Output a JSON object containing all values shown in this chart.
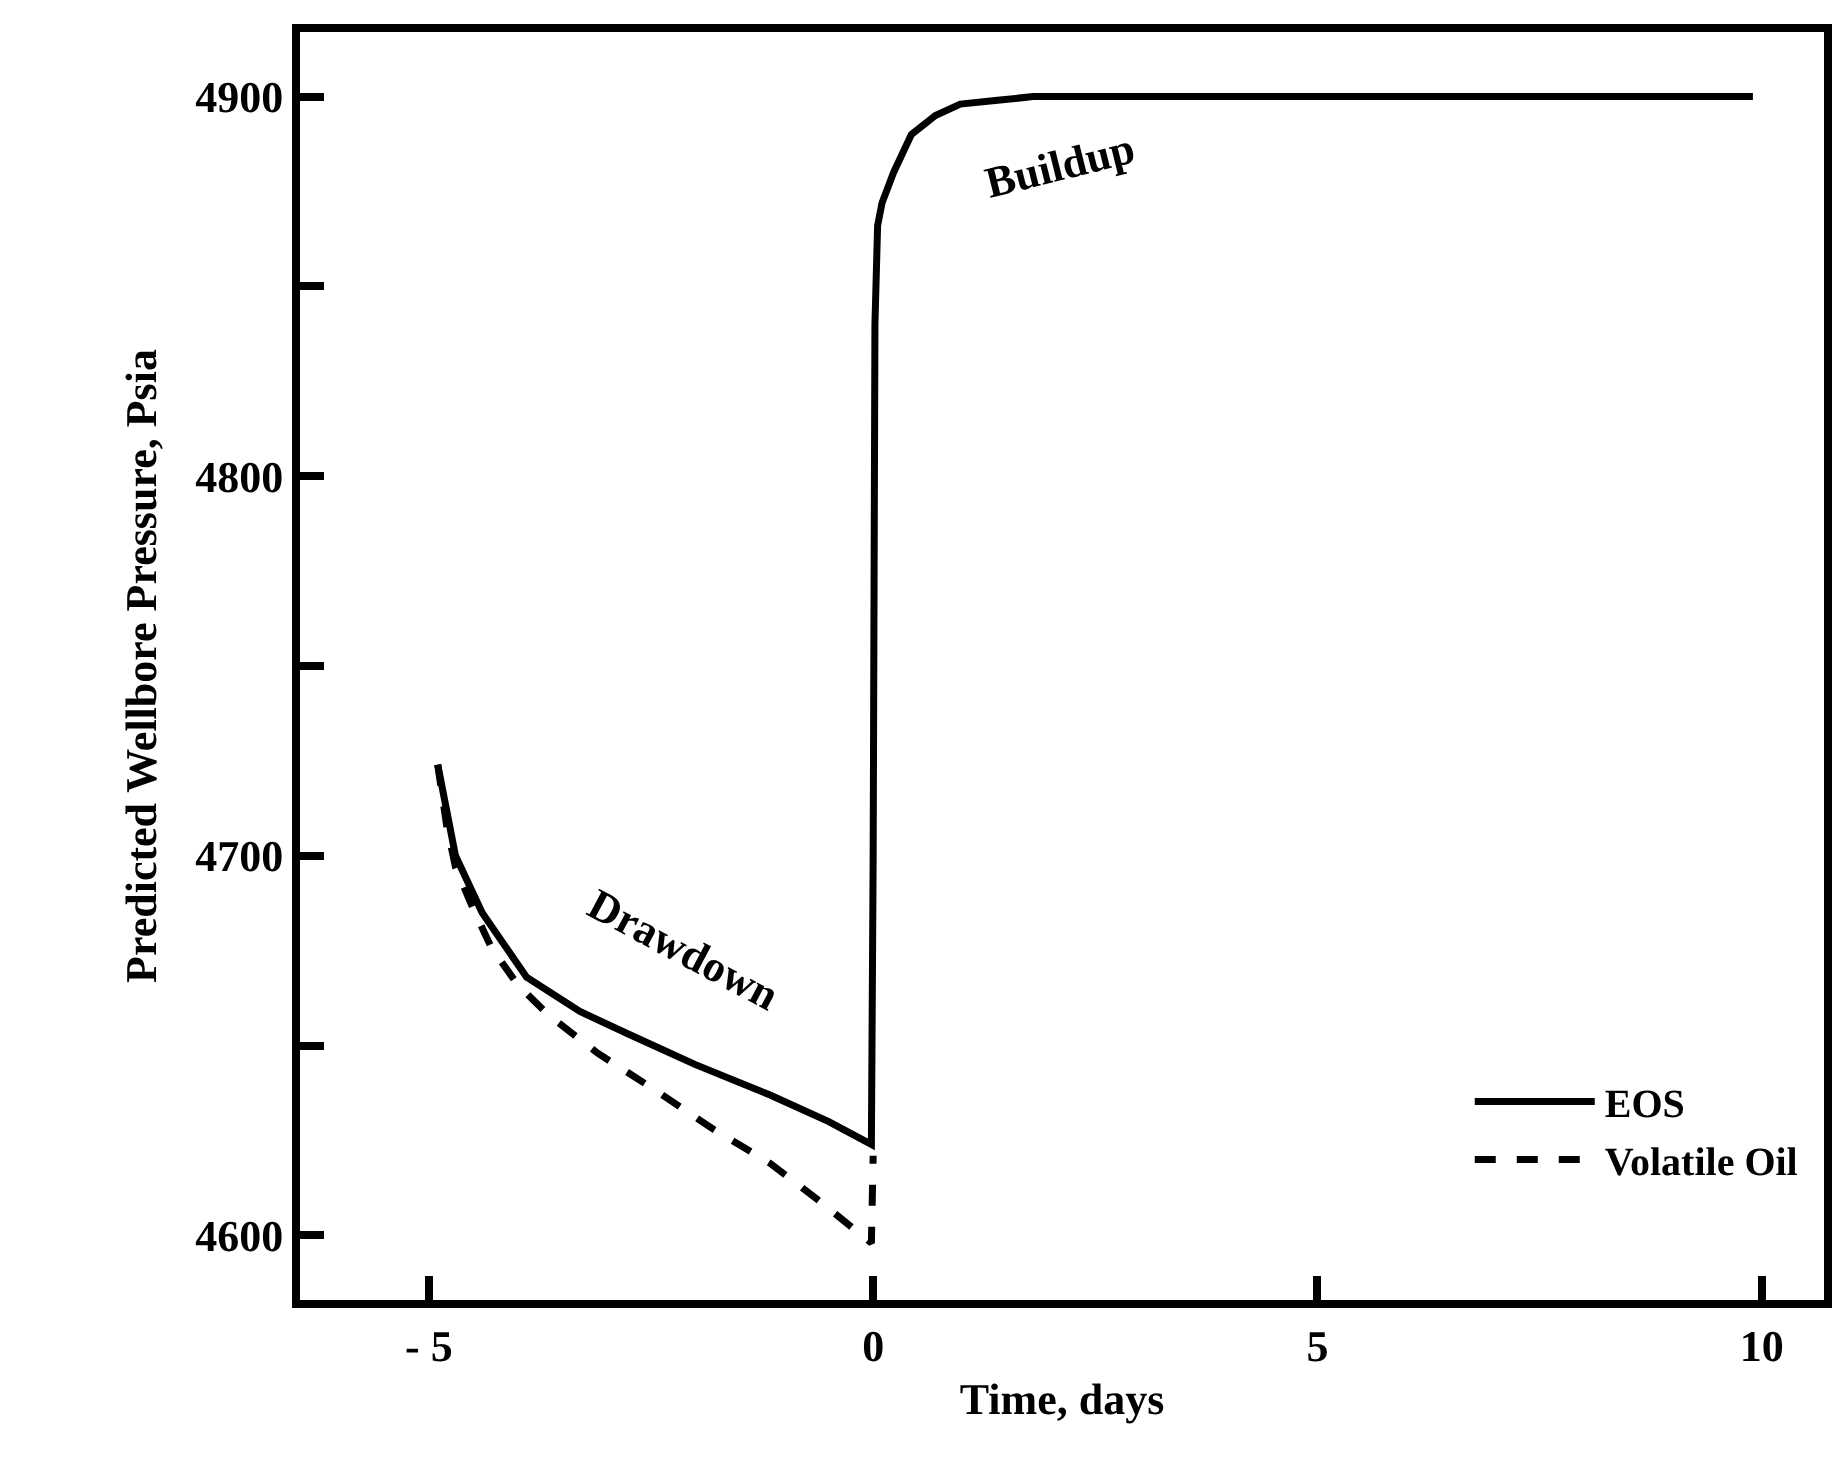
{
  "chart_data": {
    "type": "line",
    "xlabel": "Time, days",
    "ylabel": "Predicted Wellbore Pressure, Psia",
    "xlim": [
      -6.45,
      10.7
    ],
    "ylim": [
      4583,
      4917
    ],
    "xticks": [
      {
        "value": -5,
        "label": "- 5"
      },
      0,
      5,
      10
    ],
    "yticks": [
      4600,
      {
        "value": 4650,
        "label": null
      },
      4700,
      {
        "value": 4750,
        "label": null
      },
      4800,
      {
        "value": 4850,
        "label": null
      },
      4900
    ],
    "legend": "bottom right",
    "series": [
      {
        "name": "EOS",
        "color": "#000000",
        "line_style": "solid",
        "x": [
          -4.9,
          -4.8,
          -4.7,
          -4.4,
          -3.9,
          -3.3,
          -2.75,
          -2.0,
          -1.16,
          -0.5,
          -0.02,
          0.0,
          0.02,
          0.05,
          0.1,
          0.23,
          0.43,
          0.7,
          0.98,
          1.4,
          1.8,
          2.5,
          4.0,
          6.0,
          8.0,
          9.9
        ],
        "values": [
          4724,
          4712,
          4700,
          4685,
          4668,
          4659,
          4653,
          4645,
          4637,
          4630,
          4624,
          4700,
          4840,
          4866,
          4872,
          4880,
          4890,
          4895,
          4898,
          4899,
          4900,
          4900,
          4900,
          4900,
          4900,
          4900
        ]
      },
      {
        "name": "Volatile Oil",
        "color": "#000000",
        "line_style": "dashed",
        "x": [
          -4.9,
          -4.8,
          -4.7,
          -4.5,
          -4.3,
          -4.0,
          -3.65,
          -3.1,
          -2.5,
          -1.8,
          -1.16,
          -0.6,
          -0.02,
          0.0
        ],
        "values": [
          4724,
          4708,
          4697,
          4686,
          4676,
          4666,
          4658,
          4648,
          4639,
          4628,
          4619,
          4609,
          4598,
          4621
        ]
      }
    ],
    "annotations": [
      "Drawdown",
      "Buildup"
    ]
  }
}
